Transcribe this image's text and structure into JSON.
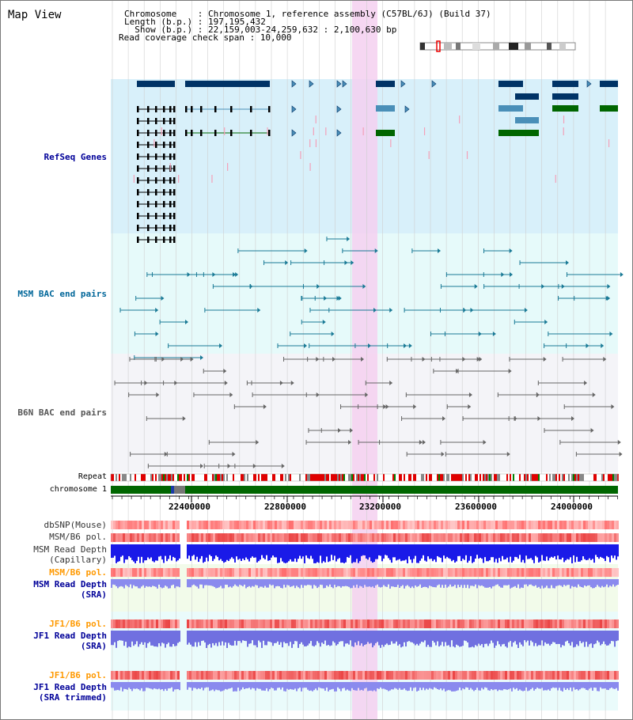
{
  "title": "Map View",
  "info": {
    "chromosome_key": "Chromosome    : ",
    "chromosome_val": "Chromosome 1, reference assembly (C57BL/6J) (Build 37)",
    "length_key": "Length (b.p.) : ",
    "length_val": "197,195,432",
    "show_key": "  Show (b.p.) : ",
    "show_val": "22,159,003-24,259,632 : 2,100,630 bp",
    "coverage_key": "Read coverage check span : ",
    "coverage_val": "10,000"
  },
  "tracks": {
    "refseq": {
      "label": "RefSeq Genes",
      "color": "#000099"
    },
    "msm_bac": {
      "label": "MSM BAC end pairs",
      "color": "#006699"
    },
    "b6n_bac": {
      "label": "B6N BAC end pairs",
      "color": "#555555"
    },
    "repeat": {
      "label": "Repeat"
    },
    "chromosome": {
      "label": "chromosome 1"
    },
    "dbsnp": {
      "label": "dbSNP(Mouse)"
    },
    "msm_b6_pol": {
      "label": "MSM/B6 pol."
    },
    "msm_read_depth_cap": {
      "label": "MSM Read Depth\n(Capillary)"
    },
    "msm_b6_pol_2": {
      "label": "MSM/B6 pol.",
      "color": "#ff9900"
    },
    "msm_read_depth_sra": {
      "label": "MSM Read Depth\n(SRA)"
    },
    "jf1_b6_pol": {
      "label": "JF1/B6 pol.",
      "color": "#ff9900"
    },
    "jf1_read_depth_sra": {
      "label": "JF1 Read Depth\n(SRA)"
    },
    "jf1_b6_pol_2": {
      "label": "JF1/B6 pol.",
      "color": "#ff9900"
    },
    "jf1_read_depth_trim": {
      "label": "JF1 Read Depth\n(SRA trimmed)"
    }
  },
  "axis": {
    "ticks": [
      "22400000",
      "22800000",
      "23200000",
      "23600000",
      "24000000"
    ]
  },
  "colors": {
    "refseq_bg": "#d8f0fa",
    "msm_bg": "#e6fafa",
    "b6n_bg": "#f4f4f8",
    "highlight": "#f5d0f0",
    "gene_dark": "#003366",
    "gene_mid": "#4a8fb8",
    "gene_green": "#006600",
    "chrom_green": "#006600"
  }
}
